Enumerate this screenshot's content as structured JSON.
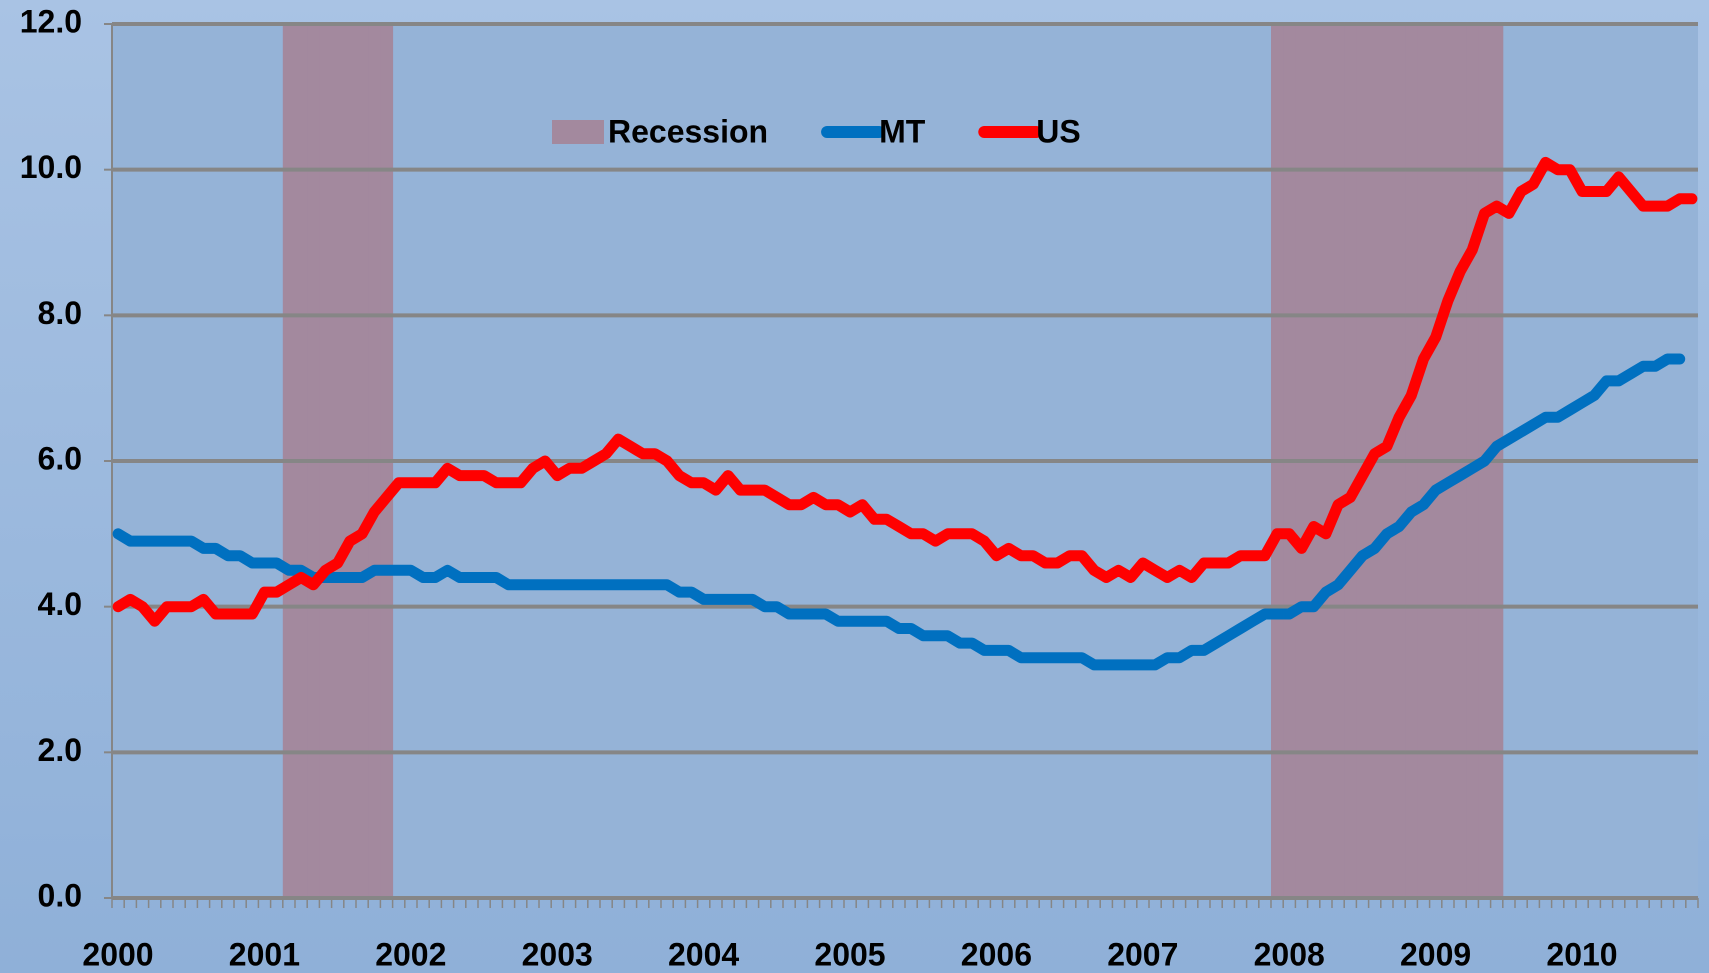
{
  "chart_data": {
    "type": "line",
    "categories": [
      "2000",
      null,
      null,
      null,
      null,
      null,
      null,
      null,
      null,
      null,
      null,
      null,
      "2001",
      null,
      null,
      null,
      null,
      null,
      null,
      null,
      null,
      null,
      null,
      null,
      "2002",
      null,
      null,
      null,
      null,
      null,
      null,
      null,
      null,
      null,
      null,
      null,
      "2003",
      null,
      null,
      null,
      null,
      null,
      null,
      null,
      null,
      null,
      null,
      null,
      "2004",
      null,
      null,
      null,
      null,
      null,
      null,
      null,
      null,
      null,
      null,
      null,
      "2005",
      null,
      null,
      null,
      null,
      null,
      null,
      null,
      null,
      null,
      null,
      null,
      "2006",
      null,
      null,
      null,
      null,
      null,
      null,
      null,
      null,
      null,
      null,
      null,
      "2007",
      null,
      null,
      null,
      null,
      null,
      null,
      null,
      null,
      null,
      null,
      null,
      "2008",
      null,
      null,
      null,
      null,
      null,
      null,
      null,
      null,
      null,
      null,
      null,
      "2009",
      null,
      null,
      null,
      null,
      null,
      null,
      null,
      null,
      null,
      null,
      null,
      "2010",
      null,
      null,
      null,
      null,
      null,
      null,
      null,
      null,
      null
    ],
    "series": [
      {
        "name": "Recession",
        "type": "bar",
        "color": "#a3899e",
        "values": [
          null,
          null,
          null,
          null,
          null,
          null,
          null,
          null,
          null,
          null,
          null,
          null,
          null,
          null,
          12,
          12,
          12,
          12,
          12,
          12,
          12,
          12,
          12,
          null,
          null,
          null,
          null,
          null,
          null,
          null,
          null,
          null,
          null,
          null,
          null,
          null,
          null,
          null,
          null,
          null,
          null,
          null,
          null,
          null,
          null,
          null,
          null,
          null,
          null,
          null,
          null,
          null,
          null,
          null,
          null,
          null,
          null,
          null,
          null,
          null,
          null,
          null,
          null,
          null,
          null,
          null,
          null,
          null,
          null,
          null,
          null,
          null,
          null,
          null,
          null,
          null,
          null,
          null,
          null,
          null,
          null,
          null,
          null,
          null,
          null,
          null,
          null,
          null,
          null,
          null,
          null,
          null,
          null,
          null,
          null,
          12,
          12,
          12,
          12,
          12,
          12,
          12,
          12,
          12,
          12,
          12,
          12,
          12,
          12,
          12,
          12,
          12,
          12,
          12,
          null,
          null,
          null,
          null,
          null,
          null,
          null,
          null,
          null,
          null,
          null,
          null,
          null,
          null,
          null,
          null
        ]
      },
      {
        "name": "MT",
        "type": "line",
        "color": "#0070c0",
        "values": [
          5.0,
          4.9,
          4.9,
          4.9,
          4.9,
          4.9,
          4.9,
          4.8,
          4.8,
          4.7,
          4.7,
          4.6,
          4.6,
          4.6,
          4.5,
          4.5,
          4.4,
          4.4,
          4.4,
          4.4,
          4.4,
          4.5,
          4.5,
          4.5,
          4.5,
          4.4,
          4.4,
          4.5,
          4.4,
          4.4,
          4.4,
          4.4,
          4.3,
          4.3,
          4.3,
          4.3,
          4.3,
          4.3,
          4.3,
          4.3,
          4.3,
          4.3,
          4.3,
          4.3,
          4.3,
          4.3,
          4.2,
          4.2,
          4.1,
          4.1,
          4.1,
          4.1,
          4.1,
          4.0,
          4.0,
          3.9,
          3.9,
          3.9,
          3.9,
          3.8,
          3.8,
          3.8,
          3.8,
          3.8,
          3.7,
          3.7,
          3.6,
          3.6,
          3.6,
          3.5,
          3.5,
          3.4,
          3.4,
          3.4,
          3.3,
          3.3,
          3.3,
          3.3,
          3.3,
          3.3,
          3.2,
          3.2,
          3.2,
          3.2,
          3.2,
          3.2,
          3.3,
          3.3,
          3.4,
          3.4,
          3.5,
          3.6,
          3.7,
          3.8,
          3.9,
          3.9,
          3.9,
          4.0,
          4.0,
          4.2,
          4.3,
          4.5,
          4.7,
          4.8,
          5.0,
          5.1,
          5.3,
          5.4,
          5.6,
          5.7,
          5.8,
          5.9,
          6.0,
          6.2,
          6.3,
          6.4,
          6.5,
          6.6,
          6.6,
          6.7,
          6.8,
          6.9,
          7.1,
          7.1,
          7.2,
          7.3,
          7.3,
          7.4,
          7.4,
          null
        ]
      },
      {
        "name": "US",
        "type": "line",
        "color": "#ff0000",
        "values": [
          4.0,
          4.1,
          4.0,
          3.8,
          4.0,
          4.0,
          4.0,
          4.1,
          3.9,
          3.9,
          3.9,
          3.9,
          4.2,
          4.2,
          4.3,
          4.4,
          4.3,
          4.5,
          4.6,
          4.9,
          5.0,
          5.3,
          5.5,
          5.7,
          5.7,
          5.7,
          5.7,
          5.9,
          5.8,
          5.8,
          5.8,
          5.7,
          5.7,
          5.7,
          5.9,
          6.0,
          5.8,
          5.9,
          5.9,
          6.0,
          6.1,
          6.3,
          6.2,
          6.1,
          6.1,
          6.0,
          5.8,
          5.7,
          5.7,
          5.6,
          5.8,
          5.6,
          5.6,
          5.6,
          5.5,
          5.4,
          5.4,
          5.5,
          5.4,
          5.4,
          5.3,
          5.4,
          5.2,
          5.2,
          5.1,
          5.0,
          5.0,
          4.9,
          5.0,
          5.0,
          5.0,
          4.9,
          4.7,
          4.8,
          4.7,
          4.7,
          4.6,
          4.6,
          4.7,
          4.7,
          4.5,
          4.4,
          4.5,
          4.4,
          4.6,
          4.5,
          4.4,
          4.5,
          4.4,
          4.6,
          4.6,
          4.6,
          4.7,
          4.7,
          4.7,
          5.0,
          5.0,
          4.8,
          5.1,
          5.0,
          5.4,
          5.5,
          5.8,
          6.1,
          6.2,
          6.6,
          6.9,
          7.4,
          7.7,
          8.2,
          8.6,
          8.9,
          9.4,
          9.5,
          9.4,
          9.7,
          9.8,
          10.1,
          10.0,
          10.0,
          9.7,
          9.7,
          9.7,
          9.9,
          9.7,
          9.5,
          9.5,
          9.5,
          9.6,
          9.6
        ]
      }
    ],
    "ylim": [
      0,
      12
    ],
    "yticks": [
      {
        "value": 0,
        "label": "0.0"
      },
      {
        "value": 2,
        "label": "2.0"
      },
      {
        "value": 4,
        "label": "4.0"
      },
      {
        "value": 6,
        "label": "6.0"
      },
      {
        "value": 8,
        "label": "8.0"
      },
      {
        "value": 10,
        "label": "10.0"
      },
      {
        "value": 12,
        "label": "12.0"
      }
    ],
    "grid": true,
    "legend": "top"
  }
}
